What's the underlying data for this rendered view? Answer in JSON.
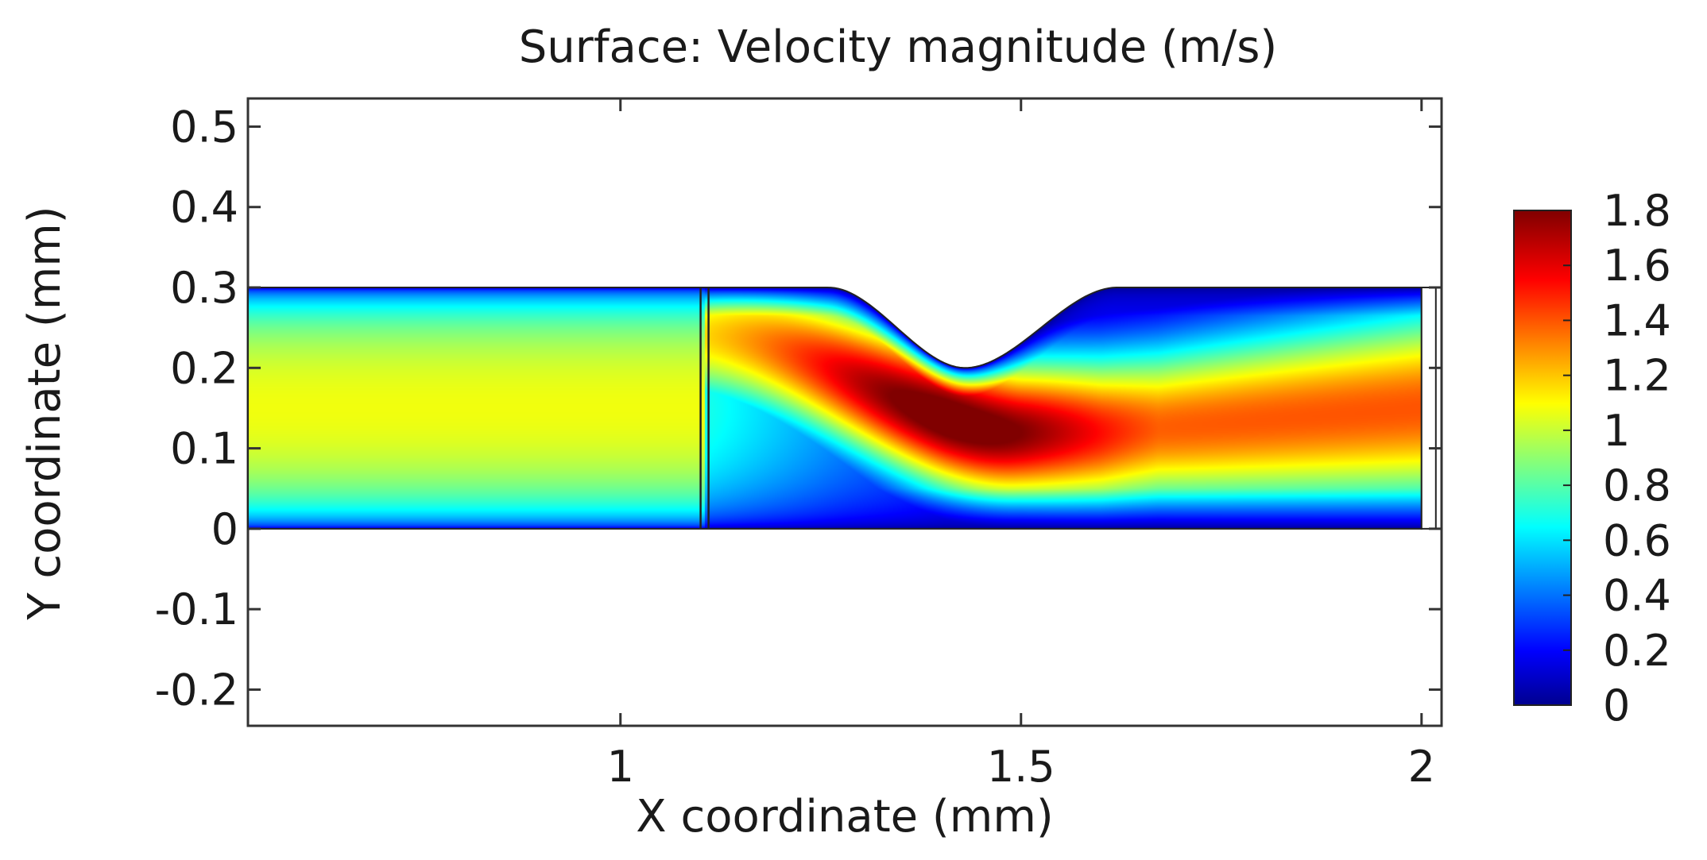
{
  "chart_data": {
    "type": "heatmap",
    "title": "Surface: Velocity magnitude (m/s)",
    "xlabel": "X coordinate (mm)",
    "ylabel": "Y coordinate (mm)",
    "xlim": [
      0.535,
      2.025
    ],
    "ylim": [
      -0.245,
      0.535
    ],
    "x_ticks": [
      {
        "value": 1,
        "label": "1"
      },
      {
        "value": 1.5,
        "label": "1.5"
      },
      {
        "value": 2,
        "label": "2"
      }
    ],
    "y_ticks": [
      {
        "value": 0.5,
        "label": "0.5"
      },
      {
        "value": 0.4,
        "label": "0.4"
      },
      {
        "value": 0.3,
        "label": "0.3"
      },
      {
        "value": 0.2,
        "label": "0.2"
      },
      {
        "value": 0.1,
        "label": "0.1"
      },
      {
        "value": 0,
        "label": "0"
      },
      {
        "value": -0.1,
        "label": "-0.1"
      },
      {
        "value": -0.2,
        "label": "-0.2"
      }
    ],
    "colorbar": {
      "min": 0,
      "max": 1.8,
      "colormap": "jet",
      "ticks": [
        {
          "value": 1.8,
          "label": "1.8"
        },
        {
          "value": 1.6,
          "label": "1.6"
        },
        {
          "value": 1.4,
          "label": "1.4"
        },
        {
          "value": 1.2,
          "label": "1.2"
        },
        {
          "value": 1.0,
          "label": "1"
        },
        {
          "value": 0.8,
          "label": "0.8"
        },
        {
          "value": 0.6,
          "label": "0.6"
        },
        {
          "value": 0.4,
          "label": "0.4"
        },
        {
          "value": 0.2,
          "label": "0.2"
        },
        {
          "value": 0,
          "label": "0"
        }
      ]
    },
    "channel": {
      "x_start": 0.535,
      "x_end": 2.0,
      "y_bottom": 0,
      "y_top": 0.3,
      "constriction": {
        "x_start": 1.26,
        "x_throat": 1.43,
        "x_end": 1.62,
        "y_throat": 0.2
      },
      "divider_x": 1.105
    },
    "velocity_field": {
      "inlet_core_velocity": 1.1,
      "peak_velocity": 1.75,
      "peak_location": [
        1.41,
        0.15
      ],
      "outlet_core_velocity": 1.28
    }
  },
  "colors": {
    "frame": "#333333",
    "text": "#1a1a1a",
    "background": "#ffffff"
  }
}
